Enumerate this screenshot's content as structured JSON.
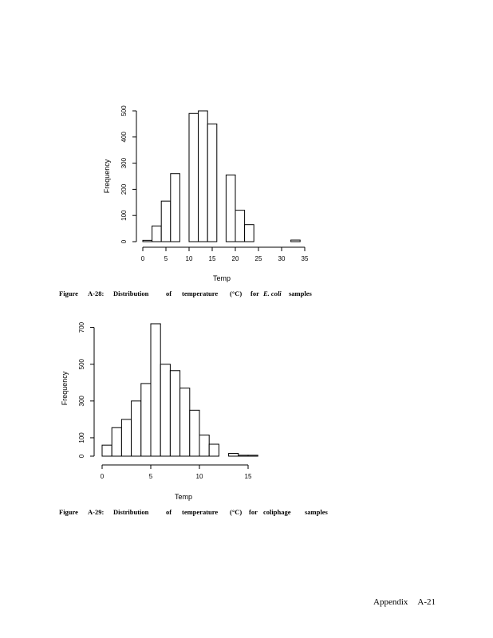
{
  "chart_data": [
    {
      "type": "bar",
      "xlabel": "Temp",
      "ylabel": "Frequency",
      "x_ticks": [
        "0",
        "5",
        "10",
        "15",
        "20",
        "25",
        "30",
        "35"
      ],
      "y_ticks": [
        "0",
        "100",
        "200",
        "300",
        "400",
        "500"
      ],
      "bin_width": 2,
      "bins": [
        {
          "start": 0,
          "count": 5
        },
        {
          "start": 2,
          "count": 60
        },
        {
          "start": 4,
          "count": 155
        },
        {
          "start": 6,
          "count": 260
        },
        {
          "start": 8,
          "count": 0
        },
        {
          "start": 10,
          "count": 490
        },
        {
          "start": 12,
          "count": 500
        },
        {
          "start": 14,
          "count": 450
        },
        {
          "start": 16,
          "count": 0
        },
        {
          "start": 18,
          "count": 255
        },
        {
          "start": 20,
          "count": 120
        },
        {
          "start": 22,
          "count": 65
        },
        {
          "start": 32,
          "count": 6
        }
      ]
    },
    {
      "type": "bar",
      "xlabel": "Temp",
      "ylabel": "Frequency",
      "x_ticks": [
        "0",
        "5",
        "10",
        "15"
      ],
      "y_ticks": [
        "0",
        "100",
        "300",
        "500",
        "700"
      ],
      "bin_width": 1,
      "bins": [
        {
          "start": 0,
          "count": 60
        },
        {
          "start": 1,
          "count": 155
        },
        {
          "start": 2,
          "count": 200
        },
        {
          "start": 3,
          "count": 300
        },
        {
          "start": 4,
          "count": 395
        },
        {
          "start": 5,
          "count": 720
        },
        {
          "start": 6,
          "count": 500
        },
        {
          "start": 7,
          "count": 465
        },
        {
          "start": 8,
          "count": 370
        },
        {
          "start": 9,
          "count": 250
        },
        {
          "start": 10,
          "count": 115
        },
        {
          "start": 11,
          "count": 65
        },
        {
          "start": 12,
          "count": 0
        },
        {
          "start": 13,
          "count": 15
        },
        {
          "start": 14,
          "count": 5
        },
        {
          "start": 15,
          "count": 5
        }
      ]
    }
  ],
  "captions": [
    {
      "parts": [
        "Figure",
        "A-28:",
        "Distribution",
        "of",
        "temperature",
        "(°C)",
        "for",
        "E. coli",
        "samples"
      ]
    },
    {
      "parts": [
        "Figure",
        "A-29:",
        "Distribution",
        "of",
        "temperature",
        "(°C)",
        "for",
        "coliphage",
        "samples"
      ]
    }
  ],
  "footer": {
    "section": "Appendix",
    "page": "A-21"
  }
}
